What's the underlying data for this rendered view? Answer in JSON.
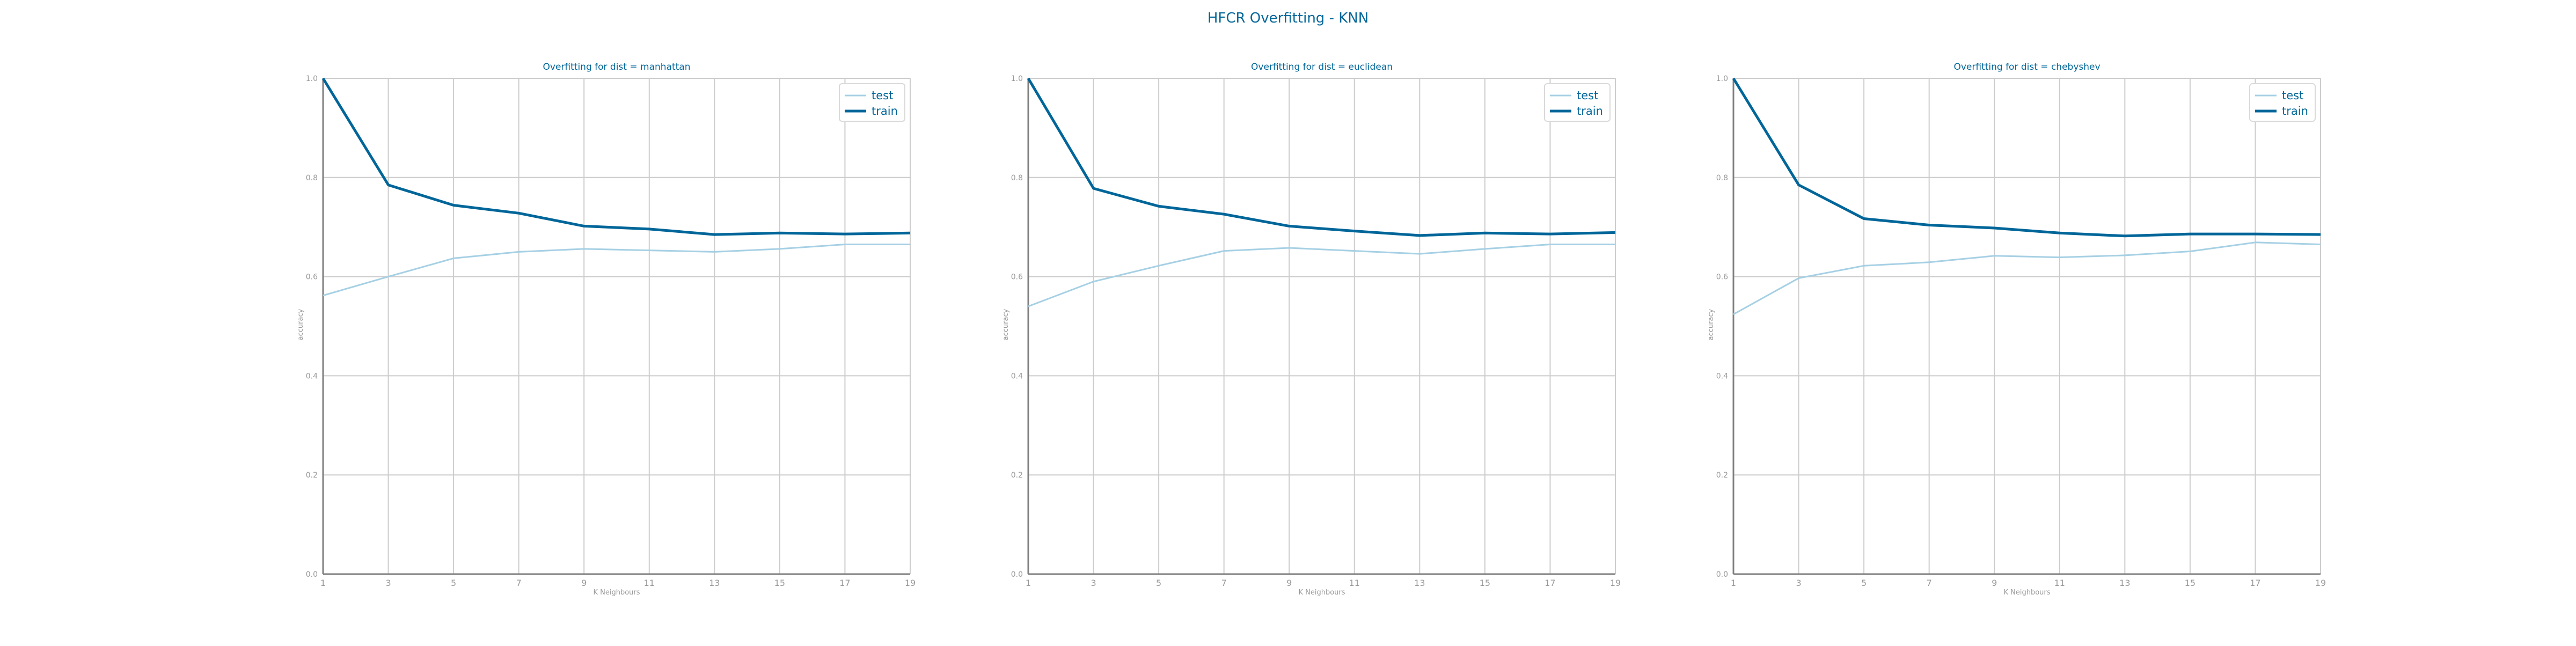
{
  "figure": {
    "title": "HFCR Overfitting - KNN"
  },
  "colors": {
    "train": "#006699",
    "test": "#a6d0e4",
    "title": "#006699",
    "tick": "#999999",
    "grid": "#cccccc",
    "axis": "#7f7f7f"
  },
  "chart_data": [
    {
      "type": "line",
      "title": "Overfitting for dist = manhattan",
      "xlabel": "K Neighbours",
      "ylabel": "accuracy",
      "x": [
        1,
        3,
        5,
        7,
        9,
        11,
        13,
        15,
        17,
        19
      ],
      "ylim": [
        0.0,
        1.0
      ],
      "yticks": [
        0.0,
        0.2,
        0.4,
        0.6,
        0.8,
        1.0
      ],
      "grid": true,
      "legend_position": "top-right",
      "series": [
        {
          "name": "test",
          "values": [
            0.562,
            0.6,
            0.637,
            0.65,
            0.656,
            0.653,
            0.65,
            0.656,
            0.665,
            0.665
          ]
        },
        {
          "name": "train",
          "values": [
            1.0,
            0.785,
            0.744,
            0.728,
            0.702,
            0.696,
            0.685,
            0.688,
            0.686,
            0.688
          ]
        }
      ]
    },
    {
      "type": "line",
      "title": "Overfitting for dist = euclidean",
      "xlabel": "K Neighbours",
      "ylabel": "accuracy",
      "x": [
        1,
        3,
        5,
        7,
        9,
        11,
        13,
        15,
        17,
        19
      ],
      "ylim": [
        0.0,
        1.0
      ],
      "yticks": [
        0.0,
        0.2,
        0.4,
        0.6,
        0.8,
        1.0
      ],
      "grid": true,
      "legend_position": "top-right",
      "series": [
        {
          "name": "test",
          "values": [
            0.54,
            0.59,
            0.622,
            0.652,
            0.658,
            0.652,
            0.646,
            0.656,
            0.665,
            0.665
          ]
        },
        {
          "name": "train",
          "values": [
            1.0,
            0.778,
            0.742,
            0.726,
            0.702,
            0.692,
            0.683,
            0.688,
            0.686,
            0.689
          ]
        }
      ]
    },
    {
      "type": "line",
      "title": "Overfitting for dist = chebyshev",
      "xlabel": "K Neighbours",
      "ylabel": "accuracy",
      "x": [
        1,
        3,
        5,
        7,
        9,
        11,
        13,
        15,
        17,
        19
      ],
      "ylim": [
        0.0,
        1.0
      ],
      "yticks": [
        0.0,
        0.2,
        0.4,
        0.6,
        0.8,
        1.0
      ],
      "grid": true,
      "legend_position": "top-right",
      "series": [
        {
          "name": "test",
          "values": [
            0.524,
            0.597,
            0.622,
            0.629,
            0.642,
            0.639,
            0.643,
            0.651,
            0.669,
            0.665
          ]
        },
        {
          "name": "train",
          "values": [
            1.0,
            0.785,
            0.717,
            0.704,
            0.698,
            0.688,
            0.682,
            0.686,
            0.686,
            0.685
          ]
        }
      ]
    }
  ]
}
